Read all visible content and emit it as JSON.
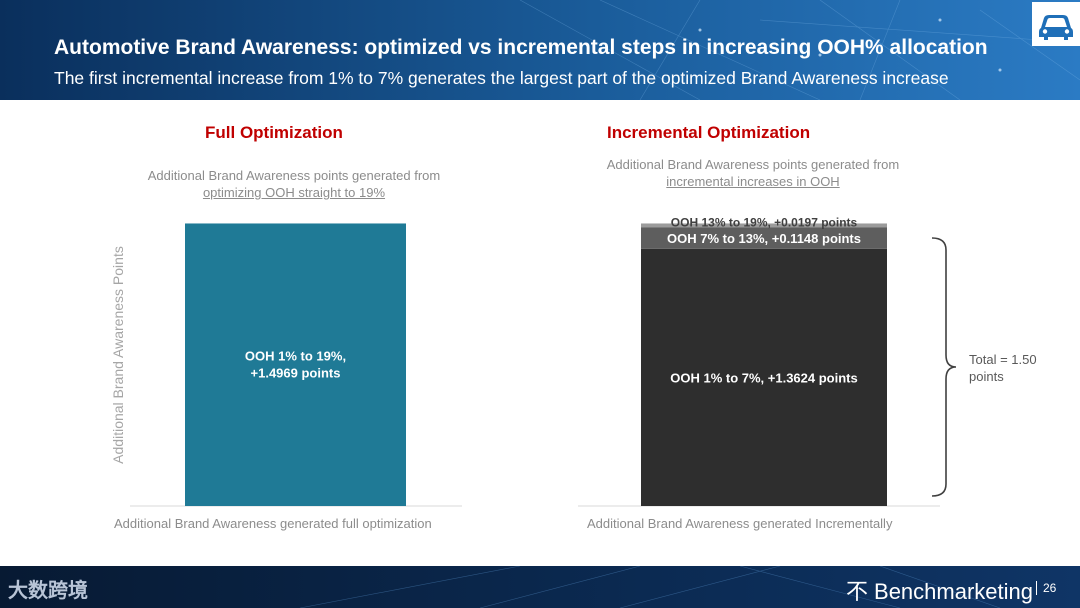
{
  "header": {
    "title": "Automotive Brand Awareness: optimized vs incremental steps in increasing OOH% allocation",
    "subtitle": "The first incremental increase from 1% to 7% generates the largest part of the optimized Brand Awareness increase",
    "icon": "car-icon"
  },
  "left": {
    "section_title": "Full Optimization",
    "desc_line1": "Additional Brand Awareness points generated from",
    "desc_line2": "optimizing OOH straight to 19%",
    "caption": "Additional Brand Awareness generated full optimization"
  },
  "right": {
    "section_title": "Incremental Optimization",
    "desc_line1": "Additional Brand Awareness points generated from",
    "desc_line2": "incremental increases in OOH",
    "caption": "Additional Brand Awareness generated Incrementally",
    "total_line1": "Total = 1.50",
    "total_line2": "points"
  },
  "chart_data": [
    {
      "type": "bar",
      "ylabel": "Additional Brand Awareness Points",
      "ylim": [
        0,
        1.51
      ],
      "grid": false,
      "series": [
        {
          "label_line1": "OOH 1% to 19%,",
          "label_line2": "+1.4969 points",
          "value": 1.4969,
          "color": "#1f7a96"
        }
      ]
    },
    {
      "type": "bar",
      "stacked": true,
      "ylim": [
        0,
        1.51
      ],
      "grid": false,
      "series": [
        {
          "label": "OOH 1% to 7%, +1.3624 points",
          "value": 1.3624,
          "color": "#2e2e2e"
        },
        {
          "label": "OOH 7% to 13%, +0.1148 points",
          "value": 0.1148,
          "color": "#5e5e5e"
        },
        {
          "label": "OOH 13% to 19%, +0.0197 points",
          "value": 0.0197,
          "color": "#9b9b9b"
        }
      ]
    }
  ],
  "footer": {
    "watermark": "大数跨境",
    "brand": "Benchmarketing",
    "brand_mark": "不",
    "page": "26"
  }
}
